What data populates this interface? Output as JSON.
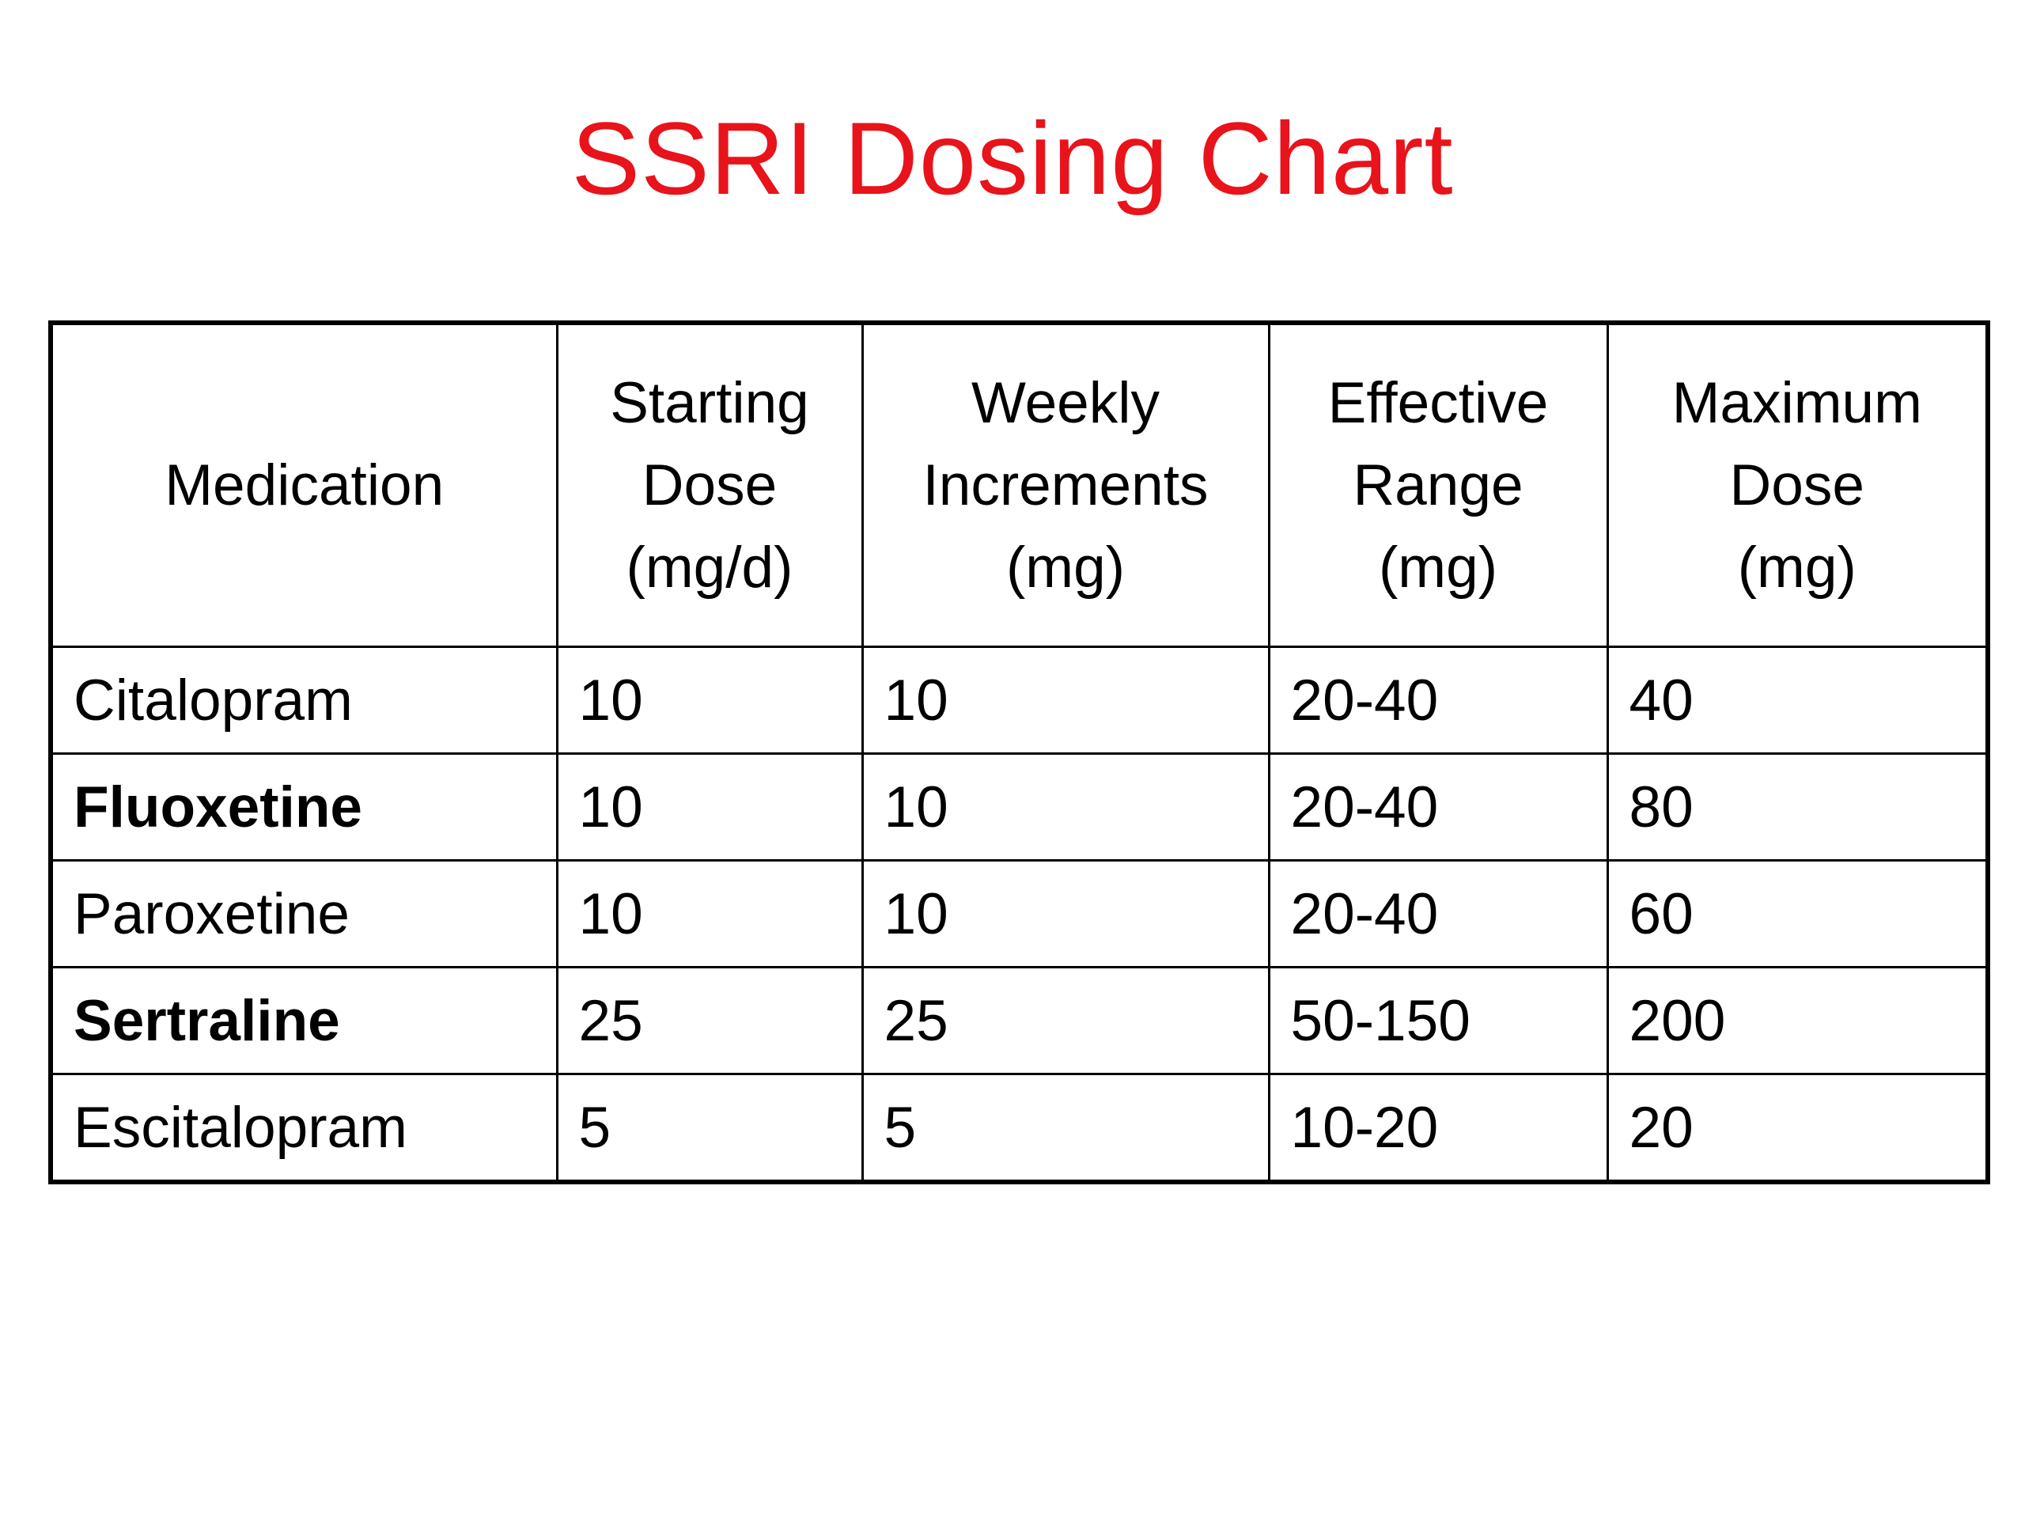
{
  "title": "SSRI Dosing Chart",
  "title_color": "#e8131b",
  "table": {
    "headers": [
      [
        "Medication"
      ],
      [
        "Starting",
        "Dose",
        "(mg/d)"
      ],
      [
        "Weekly",
        "Increments",
        "(mg)"
      ],
      [
        "Effective",
        "Range",
        "(mg)"
      ],
      [
        "Maximum",
        "Dose",
        "(mg)"
      ]
    ],
    "rows": [
      {
        "medication": "Citalopram",
        "bold": false,
        "starting_dose": "10",
        "weekly_increments": "10",
        "effective_range": "20-40",
        "maximum_dose": "40"
      },
      {
        "medication": "Fluoxetine",
        "bold": true,
        "starting_dose": "10",
        "weekly_increments": "10",
        "effective_range": "20-40",
        "maximum_dose": "80"
      },
      {
        "medication": "Paroxetine",
        "bold": false,
        "starting_dose": "10",
        "weekly_increments": "10",
        "effective_range": "20-40",
        "maximum_dose": "60"
      },
      {
        "medication": "Sertraline",
        "bold": true,
        "starting_dose": "25",
        "weekly_increments": "25",
        "effective_range": "50-150",
        "maximum_dose": "200"
      },
      {
        "medication": "Escitalopram",
        "bold": false,
        "starting_dose": "5",
        "weekly_increments": "5",
        "effective_range": "10-20",
        "maximum_dose": "20"
      }
    ]
  }
}
